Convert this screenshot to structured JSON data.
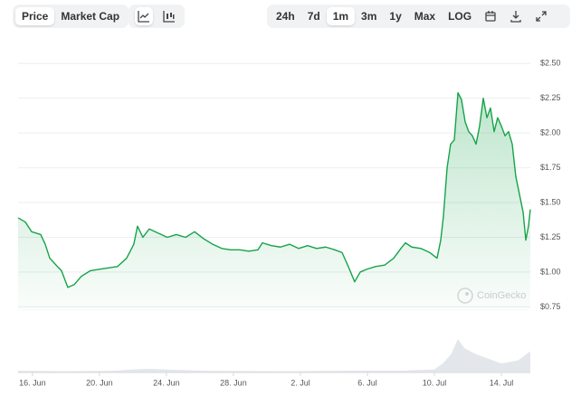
{
  "controls": {
    "tabs": [
      "Price",
      "Market Cap"
    ],
    "ranges": [
      "24h",
      "7d",
      "1m",
      "3m",
      "1y",
      "Max",
      "LOG"
    ]
  },
  "watermark": "CoinGecko",
  "chart_data": {
    "type": "line",
    "x": [
      -0.86,
      -0.43,
      -0.05,
      0.49,
      0.76,
      1.03,
      1.41,
      1.73,
      2.11,
      2.49,
      2.92,
      3.46,
      4.0,
      4.54,
      5.08,
      5.62,
      6.05,
      6.27,
      6.59,
      6.97,
      7.51,
      8.05,
      8.59,
      9.14,
      9.68,
      10.22,
      10.76,
      11.3,
      11.84,
      12.38,
      12.92,
      13.46,
      13.73,
      14.27,
      14.81,
      15.35,
      15.89,
      16.43,
      16.97,
      17.51,
      18.05,
      18.49,
      18.86,
      19.24,
      19.57,
      19.95,
      20.49,
      21.03,
      21.57,
      22.0,
      22.27,
      22.65,
      23.19,
      23.73,
      24.16,
      24.38,
      24.54,
      24.76,
      24.97,
      25.19,
      25.41,
      25.62,
      25.84,
      26.05,
      26.27,
      26.49,
      26.7,
      26.92,
      27.14,
      27.35,
      27.57,
      27.78,
      28.0,
      28.22,
      28.43,
      28.65,
      28.86,
      29.08,
      29.3,
      29.46,
      29.62,
      29.73
    ],
    "series": [
      {
        "color": "#16a34a",
        "values": [
          1.39,
          1.36,
          1.29,
          1.27,
          1.2,
          1.1,
          1.05,
          1.01,
          0.89,
          0.91,
          0.97,
          1.01,
          1.02,
          1.03,
          1.04,
          1.1,
          1.2,
          1.33,
          1.25,
          1.31,
          1.28,
          1.25,
          1.27,
          1.25,
          1.29,
          1.24,
          1.2,
          1.17,
          1.16,
          1.16,
          1.15,
          1.16,
          1.21,
          1.19,
          1.18,
          1.2,
          1.17,
          1.19,
          1.17,
          1.18,
          1.16,
          1.14,
          1.04,
          0.93,
          1.0,
          1.02,
          1.04,
          1.05,
          1.1,
          1.17,
          1.21,
          1.18,
          1.17,
          1.14,
          1.1,
          1.23,
          1.4,
          1.75,
          1.92,
          1.95,
          2.29,
          2.24,
          2.08,
          2.01,
          1.98,
          1.92,
          2.05,
          2.25,
          2.11,
          2.18,
          2.01,
          2.11,
          2.05,
          1.98,
          2.01,
          1.92,
          1.69,
          1.56,
          1.43,
          1.23,
          1.33,
          1.45
        ]
      }
    ],
    "xlim": [
      -0.86,
      29.73
    ],
    "xticks": [
      {
        "value": 0,
        "label": "16. Jun"
      },
      {
        "value": 4,
        "label": "20. Jun"
      },
      {
        "value": 8,
        "label": "24. Jun"
      },
      {
        "value": 12,
        "label": "28. Jun"
      },
      {
        "value": 16,
        "label": "2. Jul"
      },
      {
        "value": 20,
        "label": "6. Jul"
      },
      {
        "value": 24,
        "label": "10. Jul"
      },
      {
        "value": 28,
        "label": "14. Jul"
      }
    ],
    "ylim": [
      0.72,
      2.56
    ],
    "yticks": [
      {
        "value": 0.75,
        "label": "$0.75"
      },
      {
        "value": 1.0,
        "label": "$1.00"
      },
      {
        "value": 1.25,
        "label": "$1.25"
      },
      {
        "value": 1.5,
        "label": "$1.50"
      },
      {
        "value": 1.75,
        "label": "$1.75"
      },
      {
        "value": 2.0,
        "label": "$2.00"
      },
      {
        "value": 2.25,
        "label": "$2.25"
      },
      {
        "value": 2.5,
        "label": "$2.50"
      }
    ],
    "grid": true,
    "volume": {
      "color": "#e3e6ea",
      "ylim": [
        0,
        100
      ],
      "x": [
        -0.86,
        2,
        5,
        6,
        7,
        10,
        15,
        19,
        22,
        24,
        24.5,
        25,
        25.4,
        25.8,
        26.5,
        27,
        28,
        29,
        29.73
      ],
      "values": [
        3,
        2,
        3,
        5,
        6,
        3,
        2,
        3,
        3,
        5,
        15,
        30,
        55,
        40,
        30,
        25,
        15,
        20,
        35
      ]
    }
  }
}
